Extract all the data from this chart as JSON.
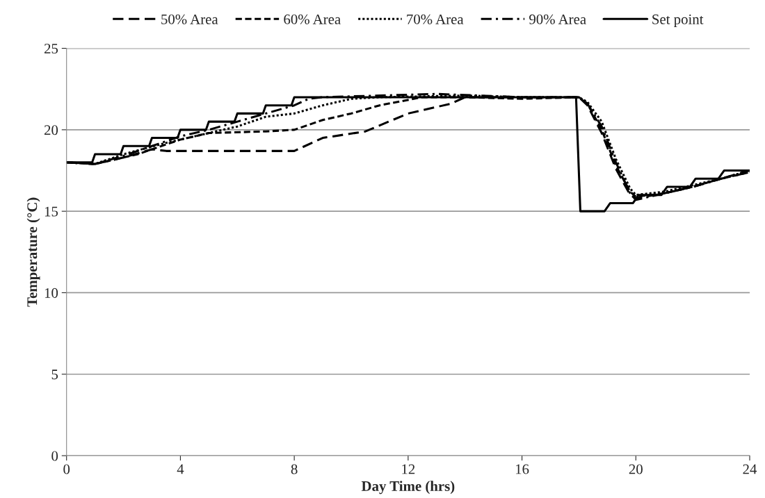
{
  "chart_data": {
    "type": "line",
    "xlabel": "Day Time (hrs)",
    "ylabel": "Temperature (°C)",
    "xlim": [
      0,
      24
    ],
    "xticks": [
      0,
      4,
      8,
      12,
      16,
      20,
      24
    ],
    "ylim": [
      0,
      25
    ],
    "yticks": [
      0,
      5,
      10,
      15,
      20,
      25
    ],
    "grid": "y",
    "legend": "top",
    "marker": "none",
    "series": [
      {
        "name": "50% Area",
        "color": "#000000",
        "line_style": "long_dashed",
        "x": [
          0,
          1,
          2,
          3,
          3.5,
          5,
          8,
          9,
          10.5,
          12,
          13.5,
          14,
          16,
          18,
          18.3,
          18.8,
          19.3,
          19.8,
          20,
          21,
          22,
          23,
          24
        ],
        "values": [
          18,
          17.9,
          18.3,
          18.8,
          18.7,
          18.7,
          18.7,
          19.5,
          19.9,
          21,
          21.6,
          22,
          22,
          22,
          21.5,
          19.8,
          17.6,
          16,
          15.8,
          16.1,
          16.5,
          17,
          17.5
        ]
      },
      {
        "name": "60% Area",
        "color": "#000000",
        "line_style": "dashed",
        "x": [
          0,
          1,
          2.5,
          4,
          5,
          7,
          8,
          9,
          10,
          11,
          12.5,
          14,
          16,
          18,
          18.3,
          18.8,
          19.3,
          19.8,
          20,
          21,
          22,
          23,
          24
        ],
        "values": [
          18,
          17.9,
          18.5,
          19.4,
          19.8,
          19.9,
          20,
          20.6,
          21,
          21.5,
          22,
          22,
          21.9,
          22,
          21.6,
          20,
          17.8,
          16.2,
          15.9,
          16.1,
          16.5,
          17,
          17.4
        ]
      },
      {
        "name": "70% Area",
        "color": "#000000",
        "line_style": "dotted",
        "x": [
          0,
          1,
          2,
          3.5,
          4.5,
          6,
          7,
          8,
          9,
          10,
          11,
          14,
          16,
          18,
          18.3,
          18.8,
          19.3,
          19.8,
          20,
          21,
          22,
          23,
          24
        ],
        "values": [
          18,
          17.9,
          18.5,
          19.2,
          19.6,
          20.2,
          20.8,
          21,
          21.5,
          21.9,
          22,
          22.1,
          22,
          22,
          21.7,
          20.5,
          18.2,
          16.4,
          16,
          16.2,
          16.6,
          17,
          17.5
        ]
      },
      {
        "name": "90% Area",
        "color": "#000000",
        "line_style": "dashdot",
        "x": [
          0,
          1,
          2,
          3,
          4,
          5,
          6,
          7,
          8,
          8.5,
          9,
          13,
          16,
          18,
          18.3,
          18.8,
          19.3,
          19.8,
          20,
          21,
          22,
          23,
          24
        ],
        "values": [
          18,
          17.9,
          18.4,
          19,
          19.6,
          20,
          20.5,
          21,
          21.5,
          21.9,
          22,
          22.2,
          22,
          22,
          21.6,
          20.2,
          18,
          16.1,
          15.7,
          16.1,
          16.5,
          17,
          17.4
        ]
      },
      {
        "name": "Set point",
        "color": "#000000",
        "line_style": "solid",
        "x": [
          0,
          0.9,
          1,
          1.9,
          2,
          2.9,
          3,
          3.9,
          4,
          4.9,
          5,
          5.9,
          6,
          6.9,
          7,
          7.9,
          8,
          17.9,
          18.05,
          18.9,
          19.1,
          19.9,
          20.1,
          20.9,
          21.1,
          21.9,
          22.1,
          22.9,
          23.1,
          24
        ],
        "values": [
          18,
          18,
          18.5,
          18.5,
          19,
          19,
          19.5,
          19.5,
          20,
          20,
          20.5,
          20.5,
          21,
          21,
          21.5,
          21.5,
          22,
          22,
          15,
          15,
          15.5,
          15.5,
          16,
          16,
          16.5,
          16.5,
          17,
          17,
          17.5,
          17.5
        ]
      }
    ]
  }
}
